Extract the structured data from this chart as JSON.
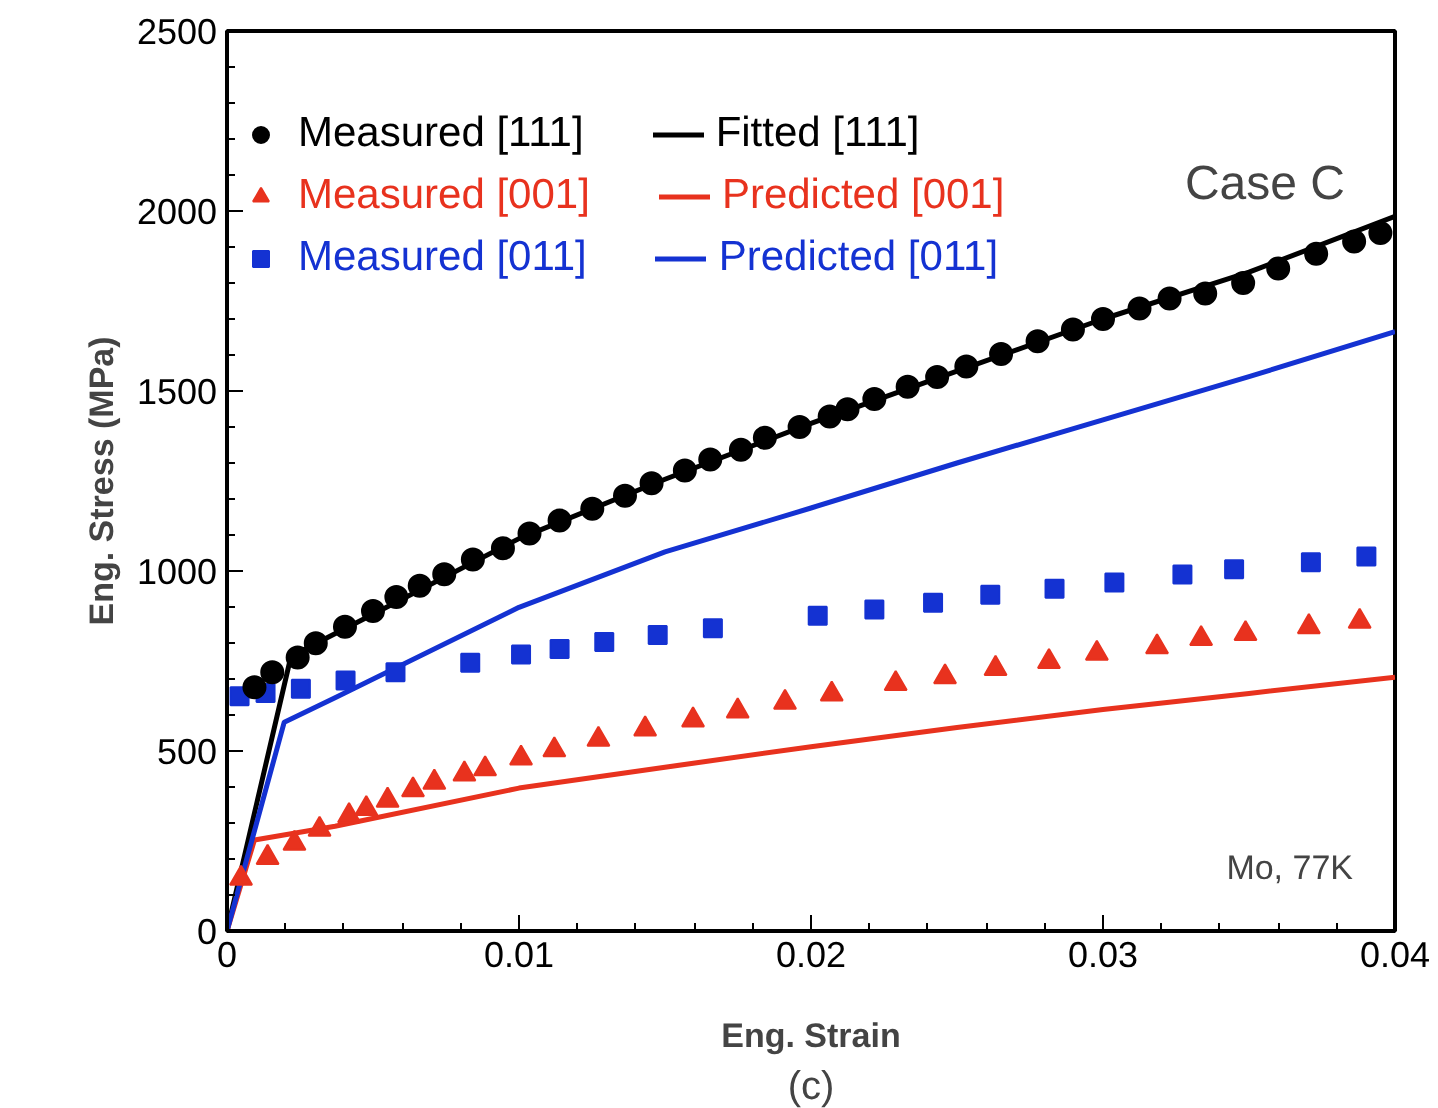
{
  "chart_data": {
    "type": "scatter",
    "xlabel": "Eng. Strain",
    "ylabel": "Eng. Stress (MPa)",
    "xlim": [
      0,
      0.04
    ],
    "xticks": [
      0,
      0.01,
      0.02,
      0.03,
      0.04
    ],
    "ylim": [
      0,
      2500
    ],
    "yticks": [
      0,
      500,
      1000,
      1500,
      2000,
      2500
    ],
    "grid": false,
    "legend": "top left",
    "annotations": [
      "Case C",
      "Mo, 77K",
      "(c)"
    ],
    "series": [
      {
        "name": "Measured [111]",
        "marker": "circle",
        "color": "#000000",
        "x": [
          0.00094,
          0.00155,
          0.00242,
          0.00304,
          0.00404,
          0.005,
          0.0058,
          0.0066,
          0.00744,
          0.00842,
          0.00945,
          0.01036,
          0.01139,
          0.01251,
          0.01363,
          0.01454,
          0.01568,
          0.01655,
          0.0176,
          0.01842,
          0.01961,
          0.02064,
          0.02125,
          0.02217,
          0.02331,
          0.02432,
          0.02532,
          0.02651,
          0.02776,
          0.02897,
          0.03,
          0.03125,
          0.03228,
          0.0335,
          0.0348,
          0.036,
          0.0373,
          0.0386,
          0.0395
        ],
        "values": [
          677,
          719,
          760,
          799,
          845,
          889,
          928,
          959,
          991,
          1032,
          1063,
          1104,
          1140,
          1173,
          1209,
          1244,
          1279,
          1310,
          1337,
          1370,
          1400,
          1429,
          1449,
          1478,
          1512,
          1539,
          1568,
          1603,
          1638,
          1671,
          1700,
          1729,
          1757,
          1771,
          1800,
          1840,
          1881,
          1915,
          1939
        ]
      },
      {
        "name": "Fitted [111]",
        "type": "line",
        "color": "#000000",
        "x": [
          0,
          0.00219,
          0.005,
          0.01,
          0.015,
          0.02,
          0.025,
          0.03,
          0.035,
          0.04
        ],
        "values": [
          0,
          763,
          880,
          1090,
          1255,
          1410,
          1555,
          1700,
          1830,
          1985
        ]
      },
      {
        "name": "Measured [001]",
        "marker": "triangle",
        "color": "#e8321e",
        "x": [
          0.00048,
          0.00139,
          0.00231,
          0.00317,
          0.00418,
          0.00477,
          0.0055,
          0.00637,
          0.0071,
          0.00813,
          0.00884,
          0.01007,
          0.01121,
          0.01272,
          0.01432,
          0.01596,
          0.01749,
          0.01911,
          0.02071,
          0.0229,
          0.02459,
          0.02632,
          0.02815,
          0.02979,
          0.03185,
          0.03336,
          0.03488,
          0.03705,
          0.03879
        ],
        "values": [
          146,
          204,
          243,
          282,
          320,
          340,
          363,
          392,
          413,
          436,
          450,
          480,
          503,
          532,
          561,
          586,
          611,
          635,
          658,
          687,
          706,
          729,
          748,
          771,
          789,
          812,
          826,
          845,
          860
        ]
      },
      {
        "name": "Predicted [001]",
        "type": "line",
        "color": "#e8321e",
        "x": [
          0,
          0.00094,
          0.0037,
          0.01,
          0.015,
          0.02,
          0.025,
          0.03,
          0.035,
          0.04
        ],
        "values": [
          0,
          253,
          291,
          397,
          455,
          512,
          565,
          615,
          660,
          705
        ]
      },
      {
        "name": "Measured [011]",
        "marker": "square",
        "color": "#1432d2",
        "x": [
          0.00043,
          0.00132,
          0.00253,
          0.00406,
          0.00577,
          0.00833,
          0.01007,
          0.01139,
          0.01292,
          0.01475,
          0.01664,
          0.02023,
          0.02217,
          0.02418,
          0.02614,
          0.02834,
          0.03039,
          0.03272,
          0.03449,
          0.03712,
          0.03902
        ],
        "values": [
          652,
          661,
          673,
          696,
          719,
          745,
          768,
          783,
          803,
          822,
          841,
          876,
          893,
          912,
          934,
          951,
          968,
          990,
          1005,
          1024,
          1040
        ]
      },
      {
        "name": "Predicted [011]",
        "type": "line",
        "color": "#1432d2",
        "x": [
          0,
          0.00196,
          0.0037,
          0.01,
          0.015,
          0.02,
          0.025,
          0.03,
          0.035,
          0.04
        ],
        "values": [
          0,
          580,
          648,
          899,
          1053,
          1175,
          1300,
          1420,
          1540,
          1665
        ]
      }
    ]
  }
}
